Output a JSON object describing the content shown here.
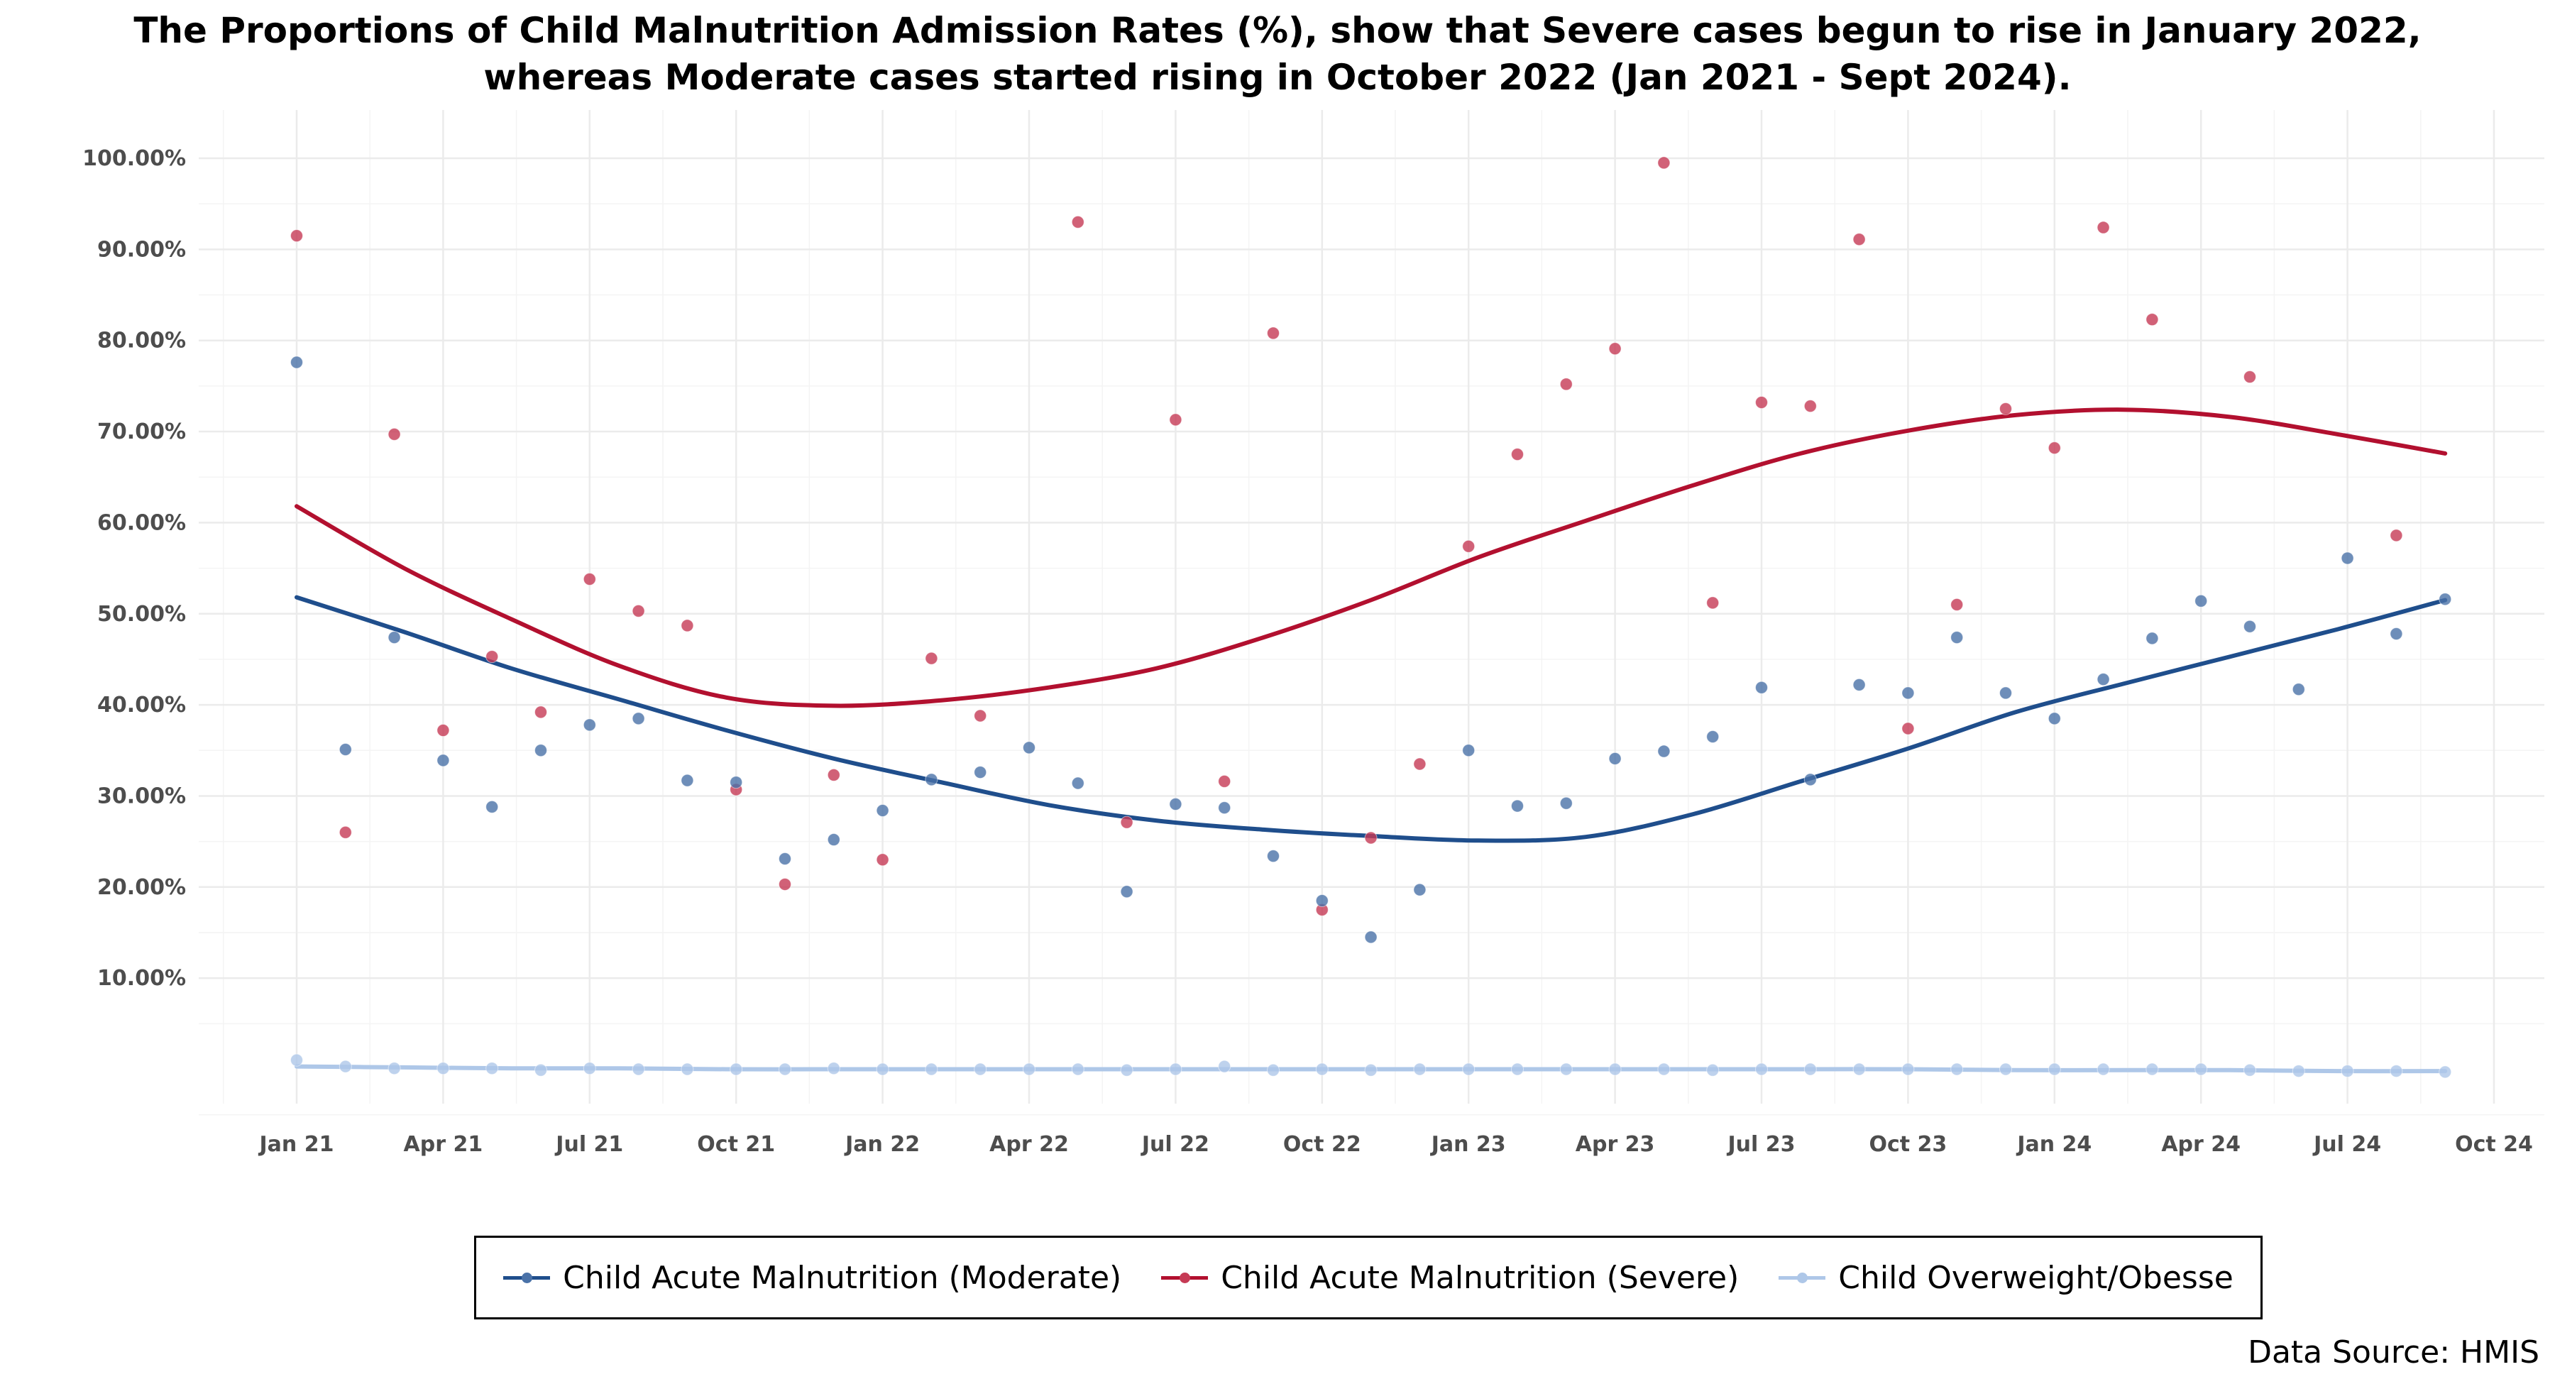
{
  "chart_data": {
    "type": "scatter",
    "title_lines": [
      "The Proportions of Child Malnutrition Admission Rates (%), show that Severe cases begun to rise in January 2022,",
      "whereas Moderate cases started rising in October 2022 (Jan 2021 - Sept 2024)."
    ],
    "source": "Data Source: HMIS",
    "x_ticks": [
      "Jan 21",
      "Apr 21",
      "Jul 21",
      "Oct 21",
      "Jan 22",
      "Apr 22",
      "Jul 22",
      "Oct 22",
      "Jan 23",
      "Apr 23",
      "Jul 23",
      "Oct 23",
      "Jan 24",
      "Apr 24",
      "Jul 24",
      "Oct 24"
    ],
    "y_ticks": [
      "10.00%",
      "20.00%",
      "30.00%",
      "40.00%",
      "50.00%",
      "60.00%",
      "70.00%",
      "80.00%",
      "90.00%",
      "100.00%"
    ],
    "ylim": [
      -5,
      104
    ],
    "x_range_months": [
      -2,
      46
    ],
    "grid": true,
    "legend_position": "bottom",
    "series": [
      {
        "name": "Child Acute Malnutrition (Moderate)",
        "color": "#1f4e8c",
        "point_color": "#4a72a8",
        "values": [
          77.6,
          35.1,
          47.4,
          33.9,
          28.8,
          35.0,
          37.8,
          38.5,
          31.7,
          31.5,
          23.1,
          25.2,
          28.4,
          31.8,
          32.6,
          35.3,
          31.4,
          19.5,
          29.1,
          28.7,
          23.4,
          18.5,
          14.5,
          19.7,
          35.0,
          28.9,
          29.2,
          34.1,
          34.9,
          36.5,
          41.9,
          31.8,
          42.2,
          41.3,
          47.4,
          41.3,
          38.5,
          42.8,
          47.3,
          51.4,
          48.6,
          41.7,
          56.1,
          47.8,
          51.6
        ],
        "trend": [
          51.8,
          48.0,
          44.0,
          40.6,
          37.2,
          34.1,
          31.5,
          29.0,
          27.3,
          26.3,
          25.6,
          25.1,
          25.5,
          28.0,
          31.6,
          35.2,
          39.2,
          42.3,
          45.3,
          48.3,
          51.5
        ]
      },
      {
        "name": "Child Acute Malnutrition (Severe)",
        "color": "#b2102f",
        "point_color": "#c63a55",
        "values": [
          91.5,
          26.0,
          69.7,
          37.2,
          45.3,
          39.2,
          53.8,
          50.3,
          48.7,
          30.7,
          20.3,
          32.3,
          23.0,
          45.1,
          38.8,
          null,
          93.0,
          27.1,
          71.3,
          31.6,
          80.8,
          17.5,
          25.4,
          33.5,
          57.4,
          67.5,
          75.2,
          79.1,
          99.5,
          51.2,
          73.2,
          72.8,
          91.1,
          37.4,
          51.0,
          72.5,
          68.2,
          92.4,
          82.3,
          null,
          76.0,
          null,
          null,
          58.6,
          null
        ],
        "trend": [
          61.8,
          55.0,
          49.4,
          44.3,
          40.8,
          39.9,
          40.5,
          41.9,
          44.0,
          47.4,
          51.5,
          56.2,
          60.2,
          64.1,
          67.6,
          70.1,
          71.8,
          72.4,
          71.6,
          69.7,
          67.6
        ]
      },
      {
        "name": "Child Overweight/Obesse",
        "color": "#aec7e8",
        "point_color": "#aec7e8",
        "values": [
          1.0,
          0.3,
          0.1,
          0.1,
          0.1,
          -0.1,
          0.1,
          0.0,
          0.0,
          0.0,
          0.0,
          0.1,
          0.0,
          0.0,
          0.0,
          0.0,
          0.0,
          -0.1,
          0.0,
          0.3,
          -0.1,
          0.0,
          -0.1,
          0.0,
          0.0,
          0.0,
          0.0,
          0.0,
          0.0,
          -0.1,
          0.0,
          0.0,
          0.0,
          0.0,
          0.0,
          0.0,
          0.0,
          0.0,
          0.0,
          0.0,
          -0.1,
          -0.2,
          -0.2,
          -0.2,
          -0.3
        ],
        "trend": [
          0.3,
          0.2,
          0.1,
          0.1,
          0.0,
          0.0,
          0.0,
          0.0,
          0.0,
          0.0,
          0.0,
          0.0,
          0.0,
          0.0,
          0.0,
          0.0,
          -0.1,
          -0.1,
          -0.1,
          -0.2,
          -0.2
        ]
      }
    ]
  }
}
